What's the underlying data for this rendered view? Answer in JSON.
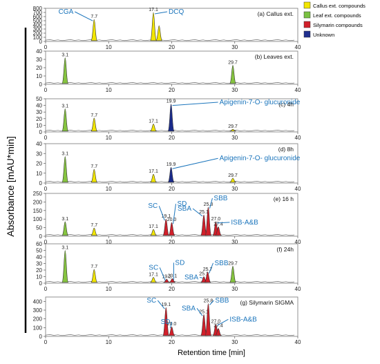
{
  "figure": {
    "ylabel": "Absorbance [mAU*min]",
    "xlabel": "Retention time [min]"
  },
  "legend": {
    "items": [
      {
        "label": "Callus ext. compounds",
        "color": "#f2e600"
      },
      {
        "label": "Leaf ext. compounds",
        "color": "#7ac142"
      },
      {
        "label": "Silymarin compounds",
        "color": "#d11f2a"
      },
      {
        "label": "Unknown",
        "color": "#1f2f8f"
      }
    ]
  },
  "colors": {
    "callus": "#f2e600",
    "leaf": "#86c440",
    "silymarin": "#d11f2a",
    "unknown": "#1a2b8c",
    "annotation": "#1b75bc",
    "trace": "#555555"
  },
  "chart_data": [
    {
      "type": "line",
      "title": "(a) Callus ext.",
      "xlim": [
        0,
        40
      ],
      "ylim": [
        0,
        800
      ],
      "yticks": [
        0,
        100,
        200,
        300,
        400,
        500,
        600,
        700,
        800
      ],
      "xticks": [
        0,
        10,
        20,
        30,
        40
      ],
      "peaks": [
        {
          "rt": 7.7,
          "height": 530,
          "class": "callus",
          "label": "7.7"
        },
        {
          "rt": 17.1,
          "height": 700,
          "class": "callus",
          "label": "17.1"
        },
        {
          "rt": 18.0,
          "height": 380,
          "class": "callus",
          "label": ""
        }
      ],
      "annotations": [
        {
          "text": "CGA",
          "rt": 7.7
        },
        {
          "text": "DCQ",
          "rt": 17.1
        }
      ]
    },
    {
      "type": "line",
      "title": "(b) Leaves ext.",
      "xlim": [
        0,
        40
      ],
      "ylim": [
        0,
        40
      ],
      "yticks": [
        0,
        10,
        20,
        30,
        40
      ],
      "xticks": [
        0,
        10,
        20,
        30,
        40
      ],
      "peaks": [
        {
          "rt": 3.1,
          "height": 32,
          "class": "leaf",
          "label": "3.1"
        },
        {
          "rt": 29.7,
          "height": 23,
          "class": "leaf",
          "label": "29.7"
        }
      ],
      "annotations": []
    },
    {
      "type": "line",
      "title": "(c) 4h",
      "xlim": [
        0,
        40
      ],
      "ylim": [
        0,
        50
      ],
      "yticks": [
        0,
        10,
        20,
        30,
        40,
        50
      ],
      "xticks": [
        0,
        10,
        20,
        30,
        40
      ],
      "peaks": [
        {
          "rt": 3.1,
          "height": 35,
          "class": "leaf",
          "label": "3.1"
        },
        {
          "rt": 7.7,
          "height": 21,
          "class": "callus",
          "label": "7.7"
        },
        {
          "rt": 17.1,
          "height": 12,
          "class": "callus",
          "label": "17.1"
        },
        {
          "rt": 19.9,
          "height": 42,
          "class": "unknown",
          "label": "19.9"
        },
        {
          "rt": 29.7,
          "height": 4,
          "class": "callus",
          "label": "29.7"
        }
      ],
      "annotations": [
        {
          "text": "Apigenin-7-O- glucuronide",
          "rt": 19.9
        }
      ]
    },
    {
      "type": "line",
      "title": "(d) 8h",
      "xlim": [
        0,
        40
      ],
      "ylim": [
        0,
        40
      ],
      "yticks": [
        0,
        10,
        20,
        30,
        40
      ],
      "xticks": [
        0,
        10,
        20,
        30,
        40
      ],
      "peaks": [
        {
          "rt": 3.1,
          "height": 27,
          "class": "leaf",
          "label": "3.1"
        },
        {
          "rt": 7.7,
          "height": 14,
          "class": "callus",
          "label": "7.7"
        },
        {
          "rt": 17.1,
          "height": 9,
          "class": "callus",
          "label": "17.1"
        },
        {
          "rt": 19.9,
          "height": 16,
          "class": "unknown",
          "label": "19.9"
        },
        {
          "rt": 29.7,
          "height": 5,
          "class": "callus",
          "label": "29.7"
        }
      ],
      "annotations": [
        {
          "text": "Apigenin-7-O- glucuronide",
          "rt": 19.9
        }
      ]
    },
    {
      "type": "line",
      "title": "(e) 16 h",
      "xlim": [
        0,
        40
      ],
      "ylim": [
        0,
        250
      ],
      "yticks": [
        0,
        50,
        100,
        150,
        200,
        250
      ],
      "xticks": [
        0,
        10,
        20,
        30,
        40
      ],
      "peaks": [
        {
          "rt": 3.1,
          "height": 85,
          "class": "leaf",
          "label": "3.1"
        },
        {
          "rt": 7.7,
          "height": 48,
          "class": "callus",
          "label": "7.7"
        },
        {
          "rt": 17.1,
          "height": 40,
          "class": "callus",
          "label": "17.1"
        },
        {
          "rt": 19.1,
          "height": 100,
          "class": "silymarin",
          "label": "19.1"
        },
        {
          "rt": 20.0,
          "height": 80,
          "class": "silymarin",
          "label": "20.0"
        },
        {
          "rt": 25.1,
          "height": 125,
          "class": "silymarin",
          "label": "25.1"
        },
        {
          "rt": 25.8,
          "height": 170,
          "class": "silymarin",
          "label": "25.8"
        },
        {
          "rt": 27.0,
          "height": 85,
          "class": "silymarin",
          "label": "27.0"
        },
        {
          "rt": 27.4,
          "height": 55,
          "class": "silymarin",
          "label": "27.4"
        }
      ],
      "annotations": [
        {
          "text": "SC",
          "rt": 19.1
        },
        {
          "text": "SD",
          "rt": 20.0
        },
        {
          "text": "SBA",
          "rt": 25.1
        },
        {
          "text": "SBB",
          "rt": 25.8
        },
        {
          "text": "ISB-A&B",
          "rt": 27.0
        }
      ]
    },
    {
      "type": "line",
      "title": "(f) 24h",
      "xlim": [
        0,
        40
      ],
      "ylim": [
        0,
        60
      ],
      "yticks": [
        0,
        10,
        20,
        30,
        40,
        50,
        60
      ],
      "xticks": [
        0,
        10,
        20,
        30,
        40
      ],
      "peaks": [
        {
          "rt": 3.1,
          "height": 50,
          "class": "leaf",
          "label": "3.1"
        },
        {
          "rt": 7.7,
          "height": 21,
          "class": "callus",
          "label": "7.7"
        },
        {
          "rt": 17.1,
          "height": 9,
          "class": "callus",
          "label": "17.1"
        },
        {
          "rt": 19.2,
          "height": 6,
          "class": "silymarin",
          "label": "19.2"
        },
        {
          "rt": 20.1,
          "height": 7,
          "class": "silymarin",
          "label": "20.1"
        },
        {
          "rt": 25.1,
          "height": 10,
          "class": "silymarin",
          "label": "25.1"
        },
        {
          "rt": 25.7,
          "height": 17,
          "class": "silymarin",
          "label": "25.7"
        },
        {
          "rt": 29.7,
          "height": 26,
          "class": "leaf",
          "label": "29.7"
        }
      ],
      "annotations": [
        {
          "text": "SC",
          "rt": 19.2
        },
        {
          "text": "SD",
          "rt": 20.1
        },
        {
          "text": "SBA",
          "rt": 25.1
        },
        {
          "text": "SBB",
          "rt": 25.7
        }
      ]
    },
    {
      "type": "line",
      "title": "(g) Silymarin SIGMA",
      "xlim": [
        0,
        40
      ],
      "ylim": [
        0,
        450
      ],
      "yticks": [
        0,
        100,
        200,
        300,
        400
      ],
      "xticks": [
        0,
        10,
        20,
        30,
        40
      ],
      "peaks": [
        {
          "rt": 19.1,
          "height": 330,
          "class": "silymarin",
          "label": "19.1"
        },
        {
          "rt": 20.0,
          "height": 110,
          "class": "silymarin",
          "label": "20.0"
        },
        {
          "rt": 25.1,
          "height": 250,
          "class": "silymarin",
          "label": "25.1"
        },
        {
          "rt": 25.8,
          "height": 375,
          "class": "silymarin",
          "label": "25.8"
        },
        {
          "rt": 27.0,
          "height": 140,
          "class": "silymarin",
          "label": "27.0"
        },
        {
          "rt": 27.4,
          "height": 90,
          "class": "silymarin",
          "label": "27.4"
        }
      ],
      "annotations": [
        {
          "text": "SC",
          "rt": 19.1
        },
        {
          "text": "SD",
          "rt": 20.0
        },
        {
          "text": "SBA",
          "rt": 25.1
        },
        {
          "text": "SBB",
          "rt": 25.8
        },
        {
          "text": "ISB-A&B",
          "rt": 27.0
        }
      ]
    }
  ]
}
